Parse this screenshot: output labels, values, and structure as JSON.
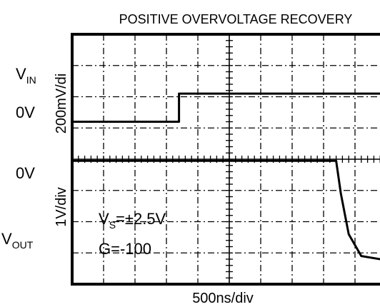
{
  "chart_data": {
    "type": "line",
    "title": "POSITIVE OVERVOLTAGE RECOVERY",
    "xlabel": "500ns/div",
    "x_divisions": 10,
    "x_visible_divisions": [
      0,
      10
    ],
    "channels": [
      {
        "name": "VIN",
        "name_main": "V",
        "name_sub": "IN",
        "scale_label": "200mV/di",
        "ground_label": "0V",
        "ground_div": 5.2,
        "trace_color": "#000000",
        "points": [
          [
            0.0,
            5.2
          ],
          [
            3.4,
            5.2
          ],
          [
            3.4,
            6.1
          ],
          [
            10.0,
            6.1
          ]
        ]
      },
      {
        "name": "VOUT",
        "name_main": "V",
        "name_sub": "OUT",
        "scale_label": "1V/div",
        "ground_label": "0V",
        "ground_div": 4.3,
        "trace_color": "#000000",
        "points": [
          [
            0.0,
            3.95
          ],
          [
            8.4,
            3.95
          ],
          [
            8.55,
            2.9
          ],
          [
            8.8,
            1.6
          ],
          [
            9.2,
            0.9
          ],
          [
            9.8,
            0.8
          ],
          [
            10.0,
            0.8
          ]
        ]
      }
    ],
    "annotations": {
      "vs_main": "V",
      "vs_sub": "S",
      "vs_value": "=±2.5V",
      "gain": "G=-100"
    },
    "grid": true
  }
}
